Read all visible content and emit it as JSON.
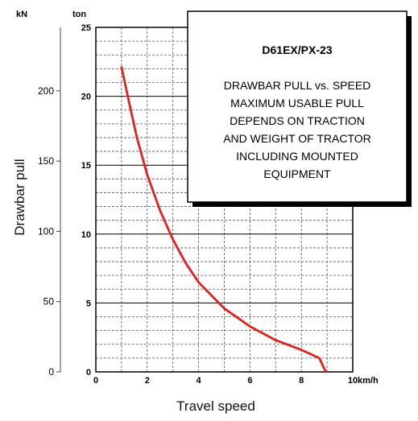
{
  "chart_data": {
    "type": "line",
    "title": "D61EX/PX-23",
    "annotation_lines": [
      "DRAWBAR PULL vs. SPEED",
      "MAXIMUM USABLE PULL",
      "DEPENDS ON TRACTION",
      "AND WEIGHT OF TRACTOR",
      "INCLUDING MOUNTED",
      "EQUIPMENT"
    ],
    "xlabel": "Travel speed",
    "ylabel": "Drawbar pull",
    "x_unit": "km/h",
    "y_unit_left": "kN",
    "y_unit_right": "ton",
    "xlim": [
      0,
      10
    ],
    "ylim_ton": [
      0,
      25
    ],
    "x_ticks": [
      "0",
      "2",
      "4",
      "6",
      "8",
      "10"
    ],
    "y_ticks_ton": [
      "0",
      "5",
      "10",
      "15",
      "20",
      "25"
    ],
    "y_ticks_kN": [
      "0",
      "50",
      "100",
      "150",
      "200"
    ],
    "grid": true,
    "series": [
      {
        "color": "#e0211f",
        "x": [
          1.0,
          1.3,
          1.6,
          2.0,
          2.5,
          3.0,
          3.5,
          4.0,
          5.0,
          6.0,
          7.0,
          8.0,
          8.7,
          8.95
        ],
        "y": [
          22.1,
          19.5,
          17.0,
          14.3,
          11.7,
          9.6,
          7.9,
          6.5,
          4.6,
          3.3,
          2.3,
          1.6,
          1.0,
          0.0
        ]
      }
    ]
  }
}
